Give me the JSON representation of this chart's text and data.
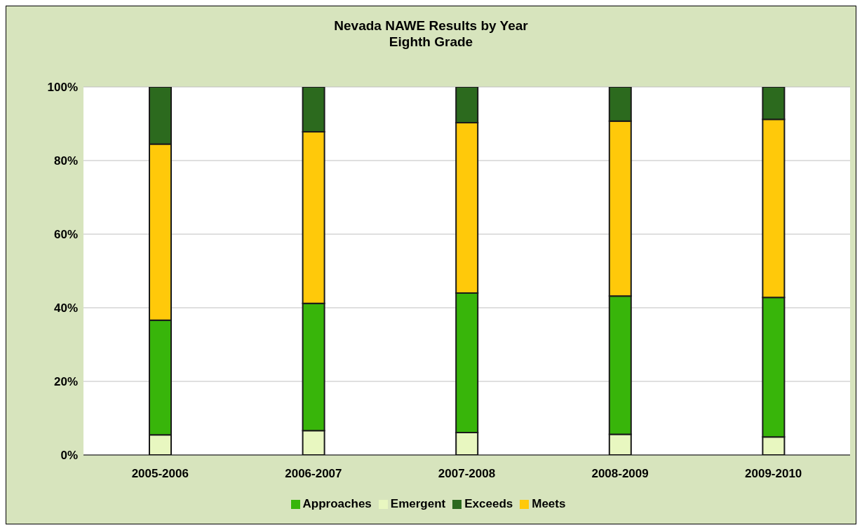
{
  "chart_data": {
    "type": "bar",
    "title": "Nevada NAWE Results by Year\nEighth Grade",
    "categories": [
      "2005-2006",
      "2006-2007",
      "2007-2008",
      "2008-2009",
      "2009-2010"
    ],
    "stacked": true,
    "series": [
      {
        "name": "Emergent",
        "color": "#e8f7c0",
        "values": [
          5.5,
          6.6,
          6.1,
          5.6,
          4.9
        ]
      },
      {
        "name": "Approaches",
        "color": "#38b50a",
        "values": [
          31.1,
          34.6,
          37.9,
          37.6,
          37.9
        ]
      },
      {
        "name": "Meets",
        "color": "#ffc90a",
        "values": [
          47.9,
          46.6,
          46.3,
          47.5,
          48.4
        ]
      },
      {
        "name": "Exceeds",
        "color": "#2c6a1e",
        "values": [
          15.5,
          12.2,
          9.7,
          9.3,
          8.8
        ]
      }
    ],
    "ylim": [
      0,
      100
    ],
    "yticks": [
      {
        "value": 0,
        "label": "0%"
      },
      {
        "value": 20,
        "label": "20%"
      },
      {
        "value": 40,
        "label": "40%"
      },
      {
        "value": 60,
        "label": "60%"
      },
      {
        "value": 80,
        "label": "80%"
      },
      {
        "value": 100,
        "label": "100%"
      }
    ],
    "grid": "y",
    "legend": "bottom"
  }
}
